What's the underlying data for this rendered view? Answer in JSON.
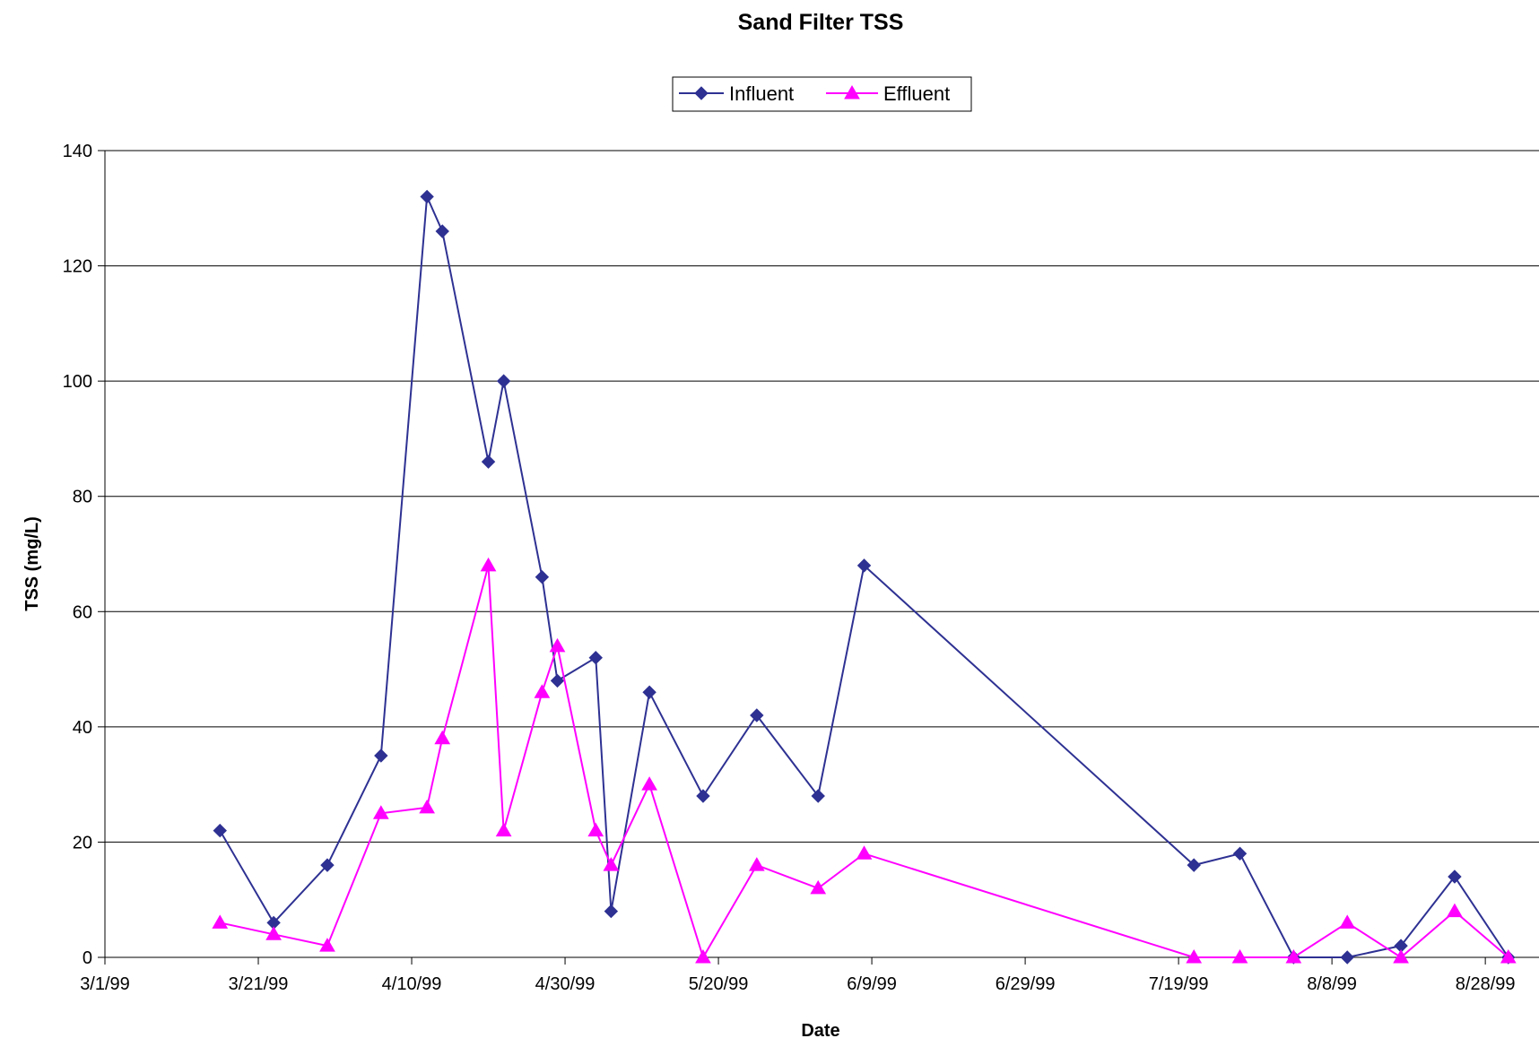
{
  "chart_data": {
    "type": "line",
    "title": "Sand Filter TSS",
    "xlabel": "Date",
    "ylabel": "TSS (mg/L)",
    "x_axis_type": "date",
    "xlim": [
      "1999-03-01",
      "1999-09-04"
    ],
    "x_tick_labels": [
      "3/1/99",
      "3/21/99",
      "4/10/99",
      "4/30/99",
      "5/20/99",
      "6/9/99",
      "6/29/99",
      "7/19/99",
      "8/8/99",
      "8/28/99"
    ],
    "ylim": [
      0,
      140
    ],
    "y_ticks": [
      0,
      20,
      40,
      60,
      80,
      100,
      120,
      140
    ],
    "grid": "horizontal",
    "legend_position": "top-center",
    "series": [
      {
        "name": "Influent",
        "color": "#2e3192",
        "marker": "diamond",
        "points": [
          {
            "x": "1999-03-16",
            "y": 22
          },
          {
            "x": "1999-03-23",
            "y": 6
          },
          {
            "x": "1999-03-30",
            "y": 16
          },
          {
            "x": "1999-04-06",
            "y": 35
          },
          {
            "x": "1999-04-12",
            "y": 132
          },
          {
            "x": "1999-04-14",
            "y": 126
          },
          {
            "x": "1999-04-20",
            "y": 86
          },
          {
            "x": "1999-04-22",
            "y": 100
          },
          {
            "x": "1999-04-27",
            "y": 66
          },
          {
            "x": "1999-04-29",
            "y": 48
          },
          {
            "x": "1999-05-04",
            "y": 52
          },
          {
            "x": "1999-05-06",
            "y": 8
          },
          {
            "x": "1999-05-11",
            "y": 46
          },
          {
            "x": "1999-05-18",
            "y": 28
          },
          {
            "x": "1999-05-25",
            "y": 42
          },
          {
            "x": "1999-06-02",
            "y": 28
          },
          {
            "x": "1999-06-08",
            "y": 68
          },
          {
            "x": "1999-07-21",
            "y": 16
          },
          {
            "x": "1999-07-27",
            "y": 18
          },
          {
            "x": "1999-08-03",
            "y": 0
          },
          {
            "x": "1999-08-10",
            "y": 0
          },
          {
            "x": "1999-08-17",
            "y": 2
          },
          {
            "x": "1999-08-24",
            "y": 14
          },
          {
            "x": "1999-08-31",
            "y": 0
          }
        ]
      },
      {
        "name": "Effluent",
        "color": "#ff00ff",
        "marker": "triangle",
        "points": [
          {
            "x": "1999-03-16",
            "y": 6
          },
          {
            "x": "1999-03-23",
            "y": 4
          },
          {
            "x": "1999-03-30",
            "y": 2
          },
          {
            "x": "1999-04-06",
            "y": 25
          },
          {
            "x": "1999-04-12",
            "y": 26
          },
          {
            "x": "1999-04-14",
            "y": 38
          },
          {
            "x": "1999-04-20",
            "y": 68
          },
          {
            "x": "1999-04-22",
            "y": 22
          },
          {
            "x": "1999-04-27",
            "y": 46
          },
          {
            "x": "1999-04-29",
            "y": 54
          },
          {
            "x": "1999-05-04",
            "y": 22
          },
          {
            "x": "1999-05-06",
            "y": 16
          },
          {
            "x": "1999-05-11",
            "y": 30
          },
          {
            "x": "1999-05-18",
            "y": 0
          },
          {
            "x": "1999-05-25",
            "y": 16
          },
          {
            "x": "1999-06-02",
            "y": 12
          },
          {
            "x": "1999-06-08",
            "y": 18
          },
          {
            "x": "1999-07-21",
            "y": 0
          },
          {
            "x": "1999-07-27",
            "y": 0
          },
          {
            "x": "1999-08-03",
            "y": 0
          },
          {
            "x": "1999-08-10",
            "y": 6
          },
          {
            "x": "1999-08-17",
            "y": 0
          },
          {
            "x": "1999-08-24",
            "y": 8
          },
          {
            "x": "1999-08-31",
            "y": 0
          }
        ]
      }
    ]
  }
}
